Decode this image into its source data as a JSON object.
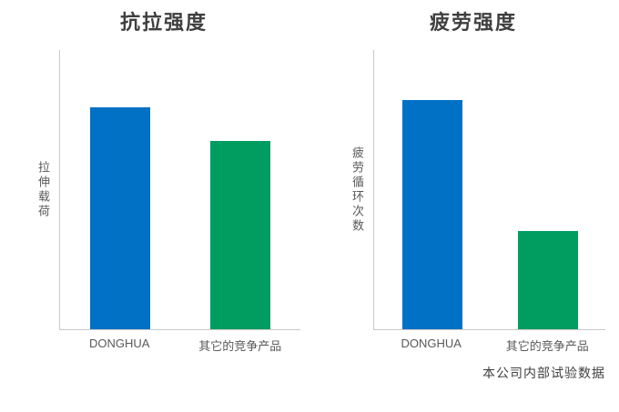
{
  "page": {
    "background": "#ffffff"
  },
  "colors": {
    "donghua_bar": "#0071c5",
    "competitor_bar": "#009c60",
    "axis_line": "#c9c9c9",
    "title_text": "#3f3f3f",
    "label_text": "#595959"
  },
  "footnote": "本公司内部试验数据",
  "chart_data": [
    {
      "type": "bar",
      "title": "抗拉强度",
      "ylabel": "拉伸载荷",
      "xlabel": "",
      "categories": [
        "DONGHUA",
        "其它的竞争产品"
      ],
      "values": [
        100,
        85
      ],
      "ylim": [
        0,
        126
      ],
      "bar_colors": [
        "#0071c5",
        "#009c60"
      ],
      "grid": false,
      "legend": "none"
    },
    {
      "type": "bar",
      "title": "疲劳强度",
      "ylabel": "疲劳循环次数",
      "xlabel": "",
      "categories": [
        "DONGHUA",
        "其它的竞争产品"
      ],
      "values": [
        100,
        43
      ],
      "ylim": [
        0,
        122
      ],
      "bar_colors": [
        "#0071c5",
        "#009c60"
      ],
      "grid": false,
      "legend": "none"
    }
  ]
}
